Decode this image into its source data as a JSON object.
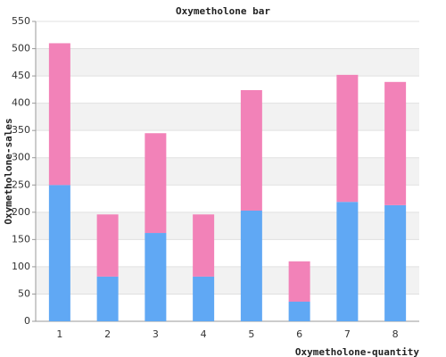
{
  "chart_data": {
    "type": "stacked-bar",
    "title": "Oxymetholone bar",
    "x_label": "Oxymetholone-quantity",
    "y_label": "Oxymetholone-sales",
    "categories": [
      "1",
      "2",
      "3",
      "4",
      "5",
      "6",
      "7",
      "8"
    ],
    "series": [
      {
        "color": "#60a8f4",
        "values": [
          250,
          82,
          162,
          82,
          203,
          36,
          219,
          213
        ]
      },
      {
        "color": "#f282b8",
        "values": [
          260,
          114,
          183,
          114,
          221,
          74,
          233,
          226
        ]
      }
    ],
    "ylim": [
      0,
      550
    ],
    "yticks": [
      0,
      50,
      100,
      150,
      200,
      250,
      300,
      350,
      400,
      450,
      500,
      550
    ],
    "grid": true
  }
}
